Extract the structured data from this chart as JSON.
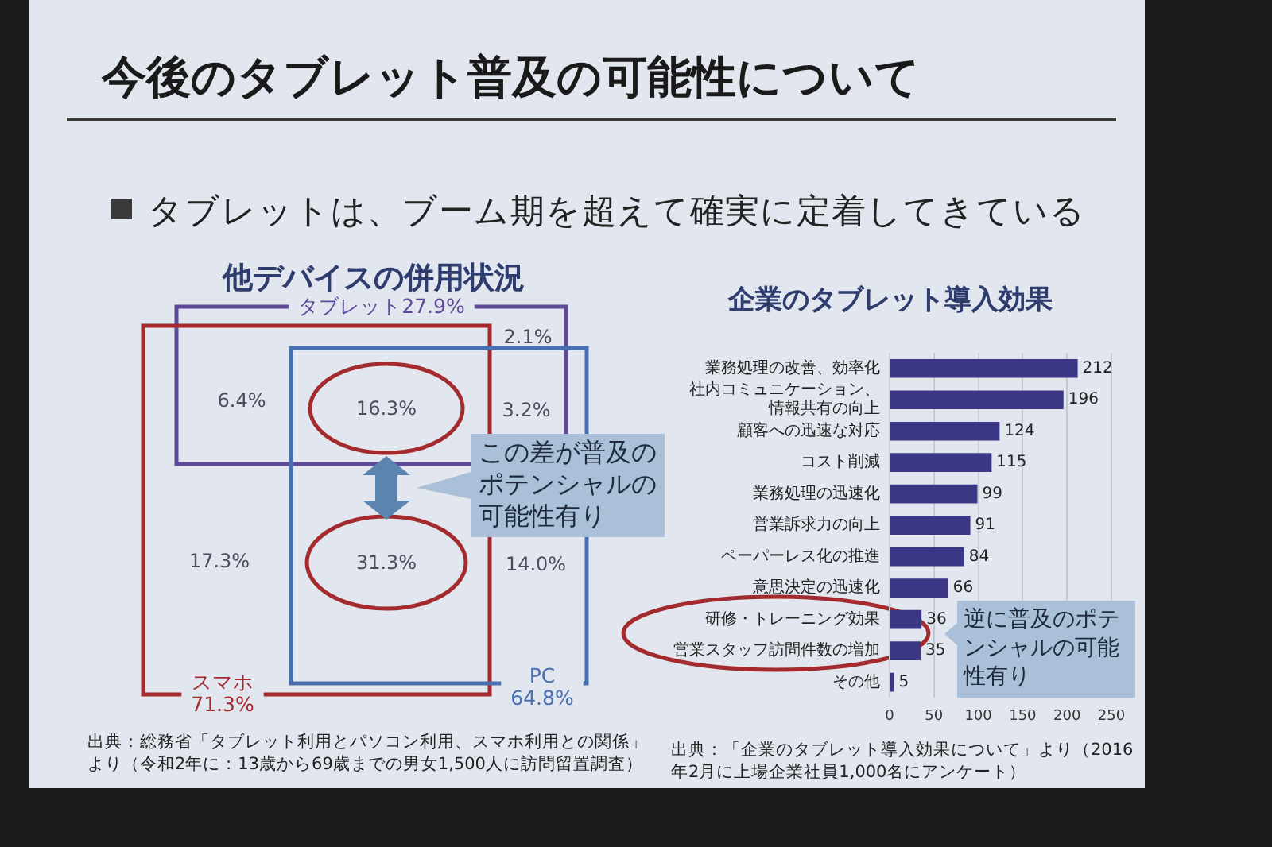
{
  "chart_data": [
    {
      "type": "other",
      "title": "今後のタブレット普及の可能性について",
      "subtitle": "タブレットは、ブーム期を超えて確実に定着してきている"
    },
    {
      "type": "other",
      "title": "他デバイスの併用状況",
      "categories": [
        "タブレット",
        "スマホ",
        "PC"
      ],
      "values": [
        27.9,
        71.3,
        64.8
      ],
      "value_labels": [
        "27.9%",
        "71.3%",
        "64.8%"
      ],
      "colors": [
        "#5f4a98",
        "#a32b2e",
        "#4870b0"
      ],
      "annotations": [
        "2.1%",
        "6.4%",
        "16.3%",
        "3.2%",
        "17.3%",
        "31.3%",
        "14.0%",
        "この差が普及のポテンシャルの可能性有り",
        "出典：総務省「タブレット利用とパソコン利用、スマホ利用との関係」より（令和2年に：13歳から69歳までの男女1,500人に訪問留置調査）"
      ]
    },
    {
      "type": "bar",
      "orientation": "horizontal",
      "title": "企業のタブレット導入効果",
      "categories": [
        "業務処理の改善、効率化",
        "社内コミュニケーション、情報共有の向上",
        "顧客への迅速な対応",
        "コスト削減",
        "業務処理の迅速化",
        "営業訴求力の向上",
        "ペーパーレス化の推進",
        "意思決定の迅速化",
        "研修・トレーニング効果",
        "営業スタッフ訪問件数の増加",
        "その他"
      ],
      "values": [
        212,
        196,
        124,
        115,
        99,
        91,
        84,
        66,
        36,
        35,
        5
      ],
      "color": "#3b3784",
      "xlim": [
        0,
        250
      ],
      "xticks": [
        0,
        50,
        100,
        150,
        200,
        250
      ],
      "grid": "x",
      "data_labels": true,
      "annotations": [
        "逆に普及のポテンシャルの可能性有り",
        "出典：「企業のタブレット導入効果について」より（2016年2月に上場企業社員1,000名にアンケート）"
      ]
    }
  ]
}
